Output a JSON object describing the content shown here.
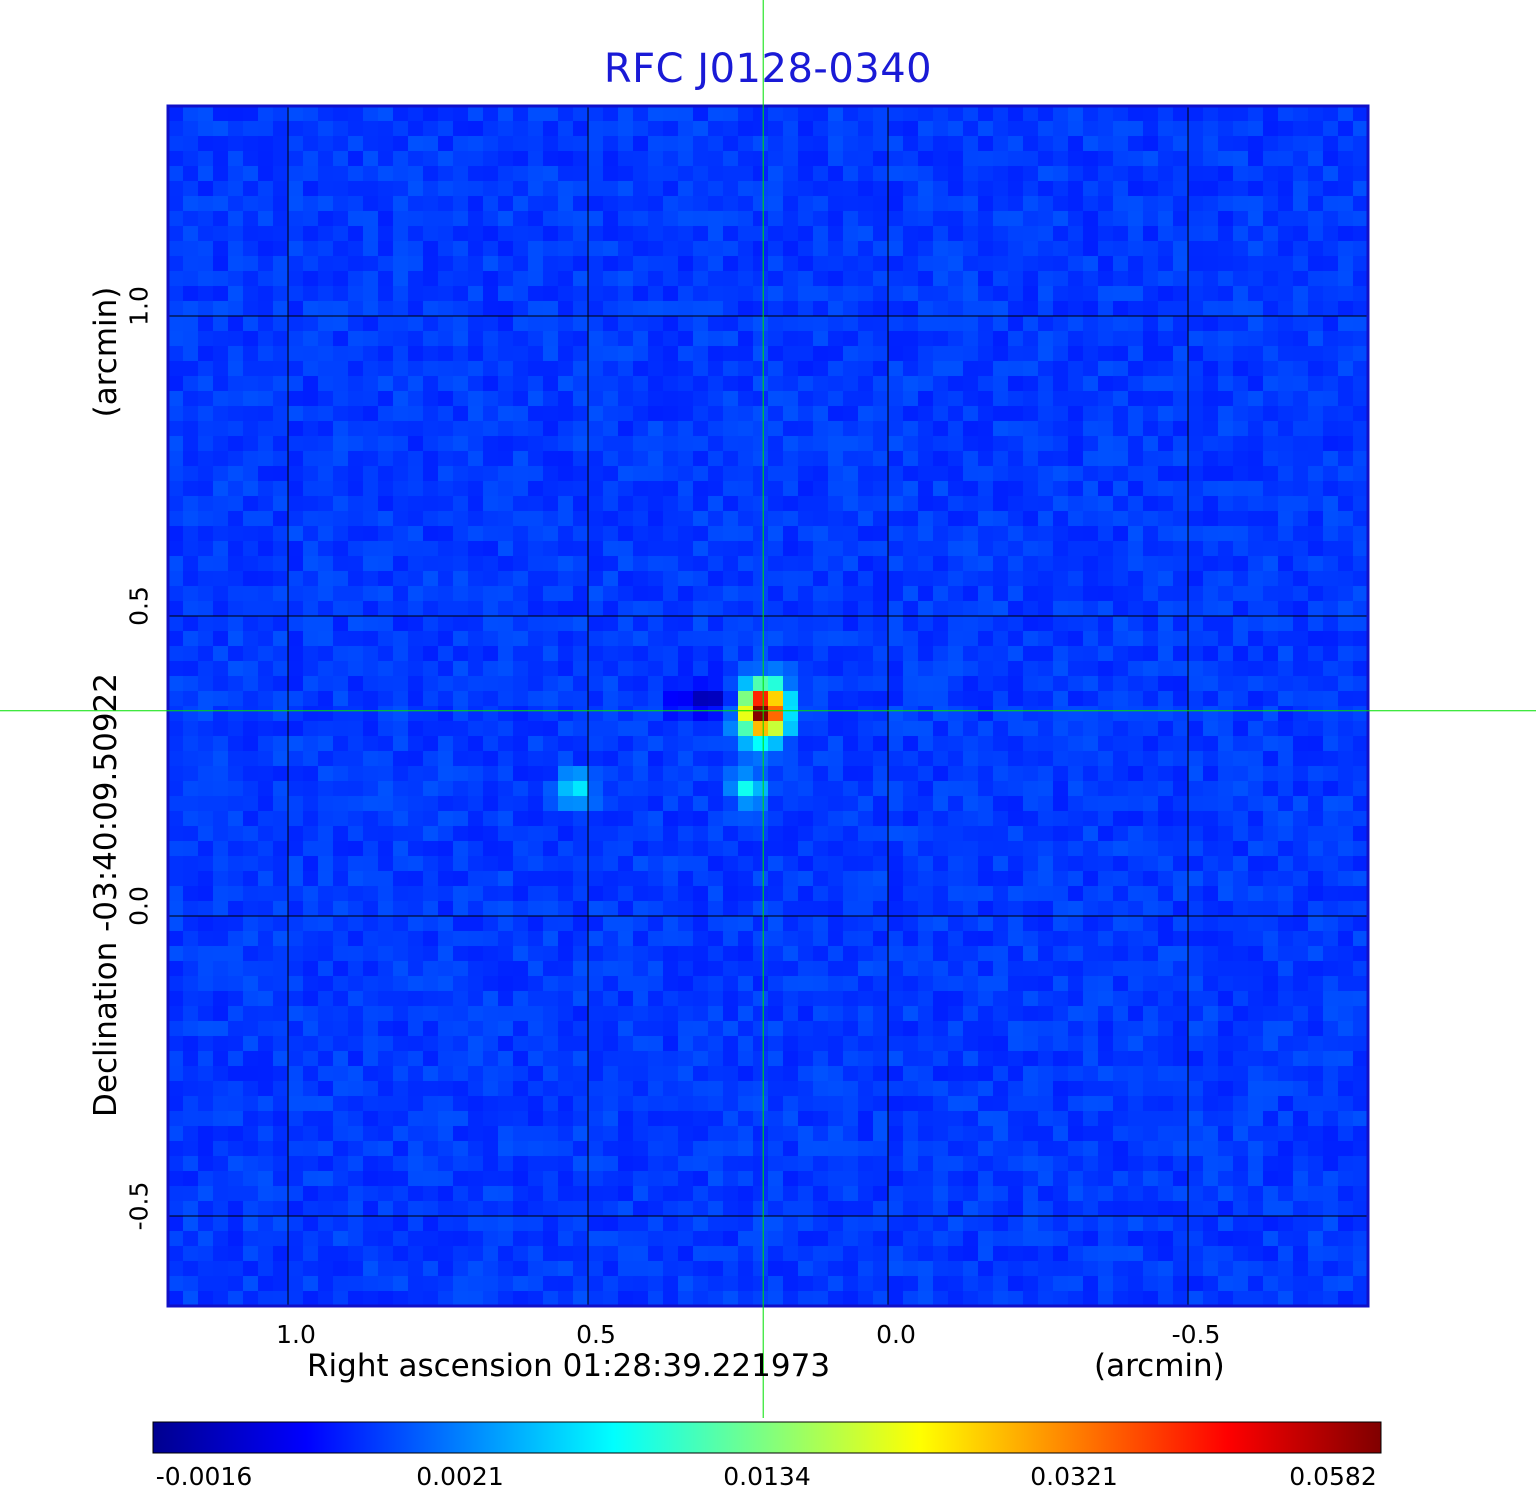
{
  "chart_data": {
    "type": "heatmap",
    "title": "RFC J0128-0340",
    "xlabel": "Right ascension  01:28:39.221973",
    "xunit": "(arcmin)",
    "ylabel": "Declination  -03:40:09.50922",
    "yunit": "(arcmin)",
    "x_ticks": [
      {
        "value": 1.0,
        "label": "1.0"
      },
      {
        "value": 0.5,
        "label": "0.5"
      },
      {
        "value": 0.0,
        "label": "0.0"
      },
      {
        "value": -0.5,
        "label": "-0.5"
      }
    ],
    "y_ticks": [
      {
        "value": 1.0,
        "label": "1.0"
      },
      {
        "value": 0.5,
        "label": "0.5"
      },
      {
        "value": 0.0,
        "label": "0.0"
      },
      {
        "value": -0.5,
        "label": "-0.5"
      }
    ],
    "xlim": [
      1.2,
      -0.8
    ],
    "ylim": [
      -0.65,
      1.35
    ],
    "x_reversed": true,
    "grid": true,
    "crosshair": {
      "x": 0.208,
      "y": 0.342
    },
    "colormap": "jet",
    "colorbar": {
      "placement": "bottom",
      "ticks": [
        "-0.0016",
        "0.0021",
        "0.0134",
        "0.0321",
        "0.0582"
      ]
    },
    "sources": [
      {
        "x": 0.208,
        "y": 0.342,
        "peak": 0.0582
      },
      {
        "x": 0.52,
        "y": 0.21,
        "peak": 0.0095
      },
      {
        "x": 0.23,
        "y": 0.21,
        "peak": 0.0095
      }
    ],
    "negative_feature": {
      "x": 0.3,
      "y": 0.36,
      "value": -0.0016
    },
    "colors": {
      "title": "#1a1ad6",
      "background_map": "#1f5af5",
      "grid": "#000000",
      "crosshair": "#00e000",
      "frame": "#1010c8"
    }
  }
}
